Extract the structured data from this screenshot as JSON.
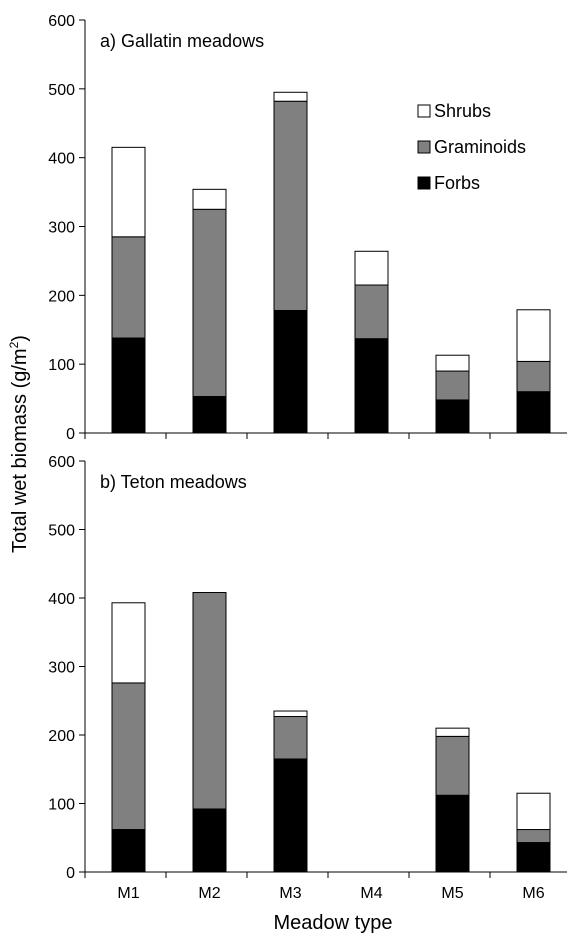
{
  "chart_data": [
    {
      "type": "bar",
      "stacked": true,
      "title": "a) Gallatin meadows",
      "categories": [
        "M1",
        "M2",
        "M3",
        "M4",
        "M5",
        "M6"
      ],
      "ylim": [
        0,
        600
      ],
      "yticks": [
        "0",
        "100",
        "200",
        "300",
        "400",
        "500",
        "600"
      ],
      "series": [
        {
          "name": "Forbs",
          "color": "#000000",
          "values": [
            138,
            53,
            178,
            137,
            48,
            60
          ]
        },
        {
          "name": "Graminoids",
          "color": "#808080",
          "values": [
            147,
            272,
            304,
            78,
            42,
            44
          ]
        },
        {
          "name": "Shrubs",
          "color": "#ffffff",
          "values": [
            130,
            29,
            13,
            49,
            23,
            75
          ]
        }
      ],
      "legend": {
        "position": "top-right",
        "order": [
          "Shrubs",
          "Graminoids",
          "Forbs"
        ]
      }
    },
    {
      "type": "bar",
      "stacked": true,
      "title": "b) Teton meadows",
      "categories": [
        "M1",
        "M2",
        "M3",
        "M4",
        "M5",
        "M6"
      ],
      "ylim": [
        0,
        600
      ],
      "yticks": [
        "0",
        "100",
        "200",
        "300",
        "400",
        "500",
        "600"
      ],
      "series": [
        {
          "name": "Forbs",
          "color": "#000000",
          "values": [
            62,
            92,
            165,
            0,
            112,
            43
          ]
        },
        {
          "name": "Graminoids",
          "color": "#808080",
          "values": [
            214,
            316,
            62,
            0,
            86,
            19
          ]
        },
        {
          "name": "Shrubs",
          "color": "#ffffff",
          "values": [
            117,
            0,
            8,
            0,
            12,
            53
          ]
        }
      ]
    }
  ],
  "axes": {
    "ylabel": "Total wet biomass (g/m²)",
    "ylabel_main": "Total wet biomass (g/m",
    "ylabel_sup": "2",
    "ylabel_tail": ")",
    "xlabel": "Meadow type"
  }
}
